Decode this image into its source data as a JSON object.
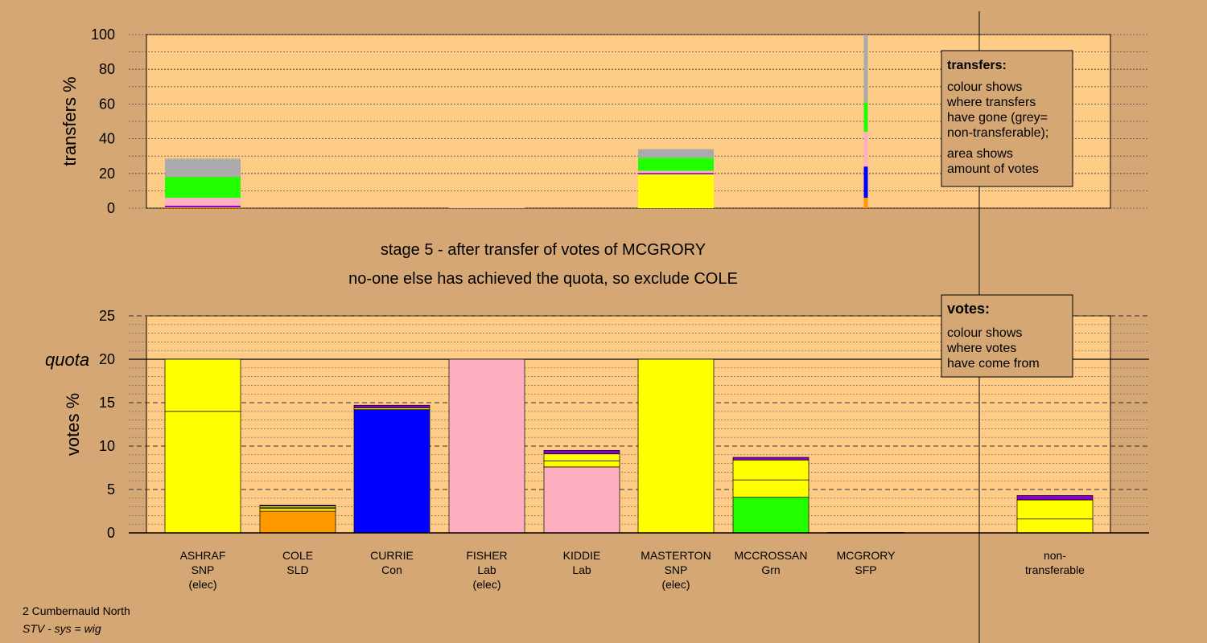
{
  "colors": {
    "background": "#d4a774",
    "plot_area": "#ffcc88",
    "SNP": "#ffff00",
    "SLD": "#ff9900",
    "Con": "#0000ff",
    "Lab": "#ffb0c0",
    "Grn": "#22ff00",
    "SFP": "#8800cc",
    "non_transferable": "#aaaaaa"
  },
  "headings": {
    "stage": "stage 5 - after transfer of votes of MCGRORY",
    "exclusion": "no-one else has achieved the quota, so exclude COLE"
  },
  "footer": {
    "constituency": "2 Cumbernauld North",
    "system": "STV - sys = wig"
  },
  "chart_data": [
    {
      "type": "bar",
      "name": "transfers",
      "ylabel": "transfers %",
      "ylim": [
        0,
        100
      ],
      "yticks": [
        0,
        20,
        40,
        60,
        80,
        100
      ],
      "legend": {
        "title": "transfers:",
        "lines": [
          "colour shows",
          "where transfers",
          "have gone (grey=",
          "non-transferable);",
          "area shows",
          "amount of votes"
        ],
        "placement": "right"
      },
      "bars": [
        {
          "candidate": "ASHRAF",
          "segments": [
            {
              "party": "SLD",
              "value": 0.5
            },
            {
              "party": "SFP",
              "value": 1.0
            },
            {
              "party": "Lab",
              "value": 4.5
            },
            {
              "party": "Grn",
              "value": 12.0
            },
            {
              "party": "non_transferable",
              "value": 10.5
            }
          ]
        },
        {
          "candidate": "FISHER",
          "segments": [
            {
              "party": "Lab",
              "value": 0.4
            }
          ]
        },
        {
          "candidate": "MASTERTON",
          "segments": [
            {
              "party": "SNP",
              "value": 19.5
            },
            {
              "party": "SFP",
              "value": 0.8
            },
            {
              "party": "Lab",
              "value": 1.2
            },
            {
              "party": "Grn",
              "value": 7.5
            },
            {
              "party": "non_transferable",
              "value": 5.0
            }
          ]
        },
        {
          "candidate": "MCGRORY",
          "segments": [
            {
              "party": "SLD",
              "value": 6.0
            },
            {
              "party": "Con",
              "value": 18.0
            },
            {
              "party": "Lab",
              "value": 20.0
            },
            {
              "party": "Grn",
              "value": 17.0
            },
            {
              "party": "non_transferable",
              "value": 39.0
            }
          ]
        }
      ]
    },
    {
      "type": "bar",
      "name": "votes",
      "ylabel": "votes %",
      "ylim": [
        0,
        25
      ],
      "yticks": [
        0,
        5,
        10,
        15,
        20,
        25
      ],
      "quota": 20,
      "quota_label": "quota",
      "legend": {
        "title": "votes:",
        "lines": [
          "colour shows",
          "where votes",
          "have come from"
        ],
        "placement": "top-right"
      },
      "categories": [
        {
          "lines": [
            "ASHRAF",
            "SNP",
            "(elec)"
          ]
        },
        {
          "lines": [
            "COLE",
            "SLD"
          ]
        },
        {
          "lines": [
            "CURRIE",
            "Con"
          ]
        },
        {
          "lines": [
            "FISHER",
            "Lab",
            "(elec)"
          ]
        },
        {
          "lines": [
            "KIDDIE",
            "Lab"
          ]
        },
        {
          "lines": [
            "MASTERTON",
            "SNP",
            "(elec)"
          ]
        },
        {
          "lines": [
            "MCCROSSAN",
            "Grn"
          ]
        },
        {
          "lines": [
            "MCGRORY",
            "SFP"
          ]
        },
        {
          "lines": [
            "non-",
            "transferable"
          ]
        }
      ],
      "stacks": [
        [
          {
            "party": "SNP",
            "value": 14.0
          },
          {
            "party": "SNP",
            "value": 6.0
          }
        ],
        [
          {
            "party": "SLD",
            "value": 2.5
          },
          {
            "party": "SNP",
            "value": 0.3
          },
          {
            "party": "Lab",
            "value": 0.1
          },
          {
            "party": "SNP",
            "value": 0.2
          },
          {
            "party": "SFP",
            "value": 0.1
          }
        ],
        [
          {
            "party": "Con",
            "value": 14.2
          },
          {
            "party": "SNP",
            "value": 0.2
          },
          {
            "party": "SFP",
            "value": 0.3
          }
        ],
        [
          {
            "party": "Lab",
            "value": 20.0
          }
        ],
        [
          {
            "party": "Lab",
            "value": 7.6
          },
          {
            "party": "SNP",
            "value": 0.7
          },
          {
            "party": "SNP",
            "value": 0.8
          },
          {
            "party": "SFP",
            "value": 0.4
          }
        ],
        [
          {
            "party": "SNP",
            "value": 20.0
          }
        ],
        [
          {
            "party": "Grn",
            "value": 4.1
          },
          {
            "party": "SNP",
            "value": 2.0
          },
          {
            "party": "SNP",
            "value": 2.3
          },
          {
            "party": "SFP",
            "value": 0.3
          }
        ],
        [
          {
            "party": "SFP",
            "value": 0.05
          }
        ],
        [
          {
            "party": "SNP",
            "value": 1.6
          },
          {
            "party": "SNP",
            "value": 2.2
          },
          {
            "party": "SFP",
            "value": 0.5
          }
        ]
      ]
    }
  ]
}
